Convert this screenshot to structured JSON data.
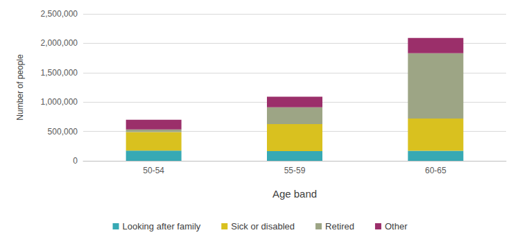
{
  "chart_data": {
    "type": "bar",
    "stacked": true,
    "grid": true,
    "legend": "bottom",
    "x_label": "Age band",
    "y_label": "Number of people",
    "categories": [
      "50-54",
      "55-59",
      "60-65"
    ],
    "series": [
      {
        "name": "Looking after family",
        "color": "#37a9b4",
        "values": [
          175000,
          165000,
          170000
        ]
      },
      {
        "name": "Sick or disabled",
        "color": "#d9c11f",
        "values": [
          315000,
          460000,
          550000
        ]
      },
      {
        "name": "Retired",
        "color": "#9da585",
        "values": [
          45000,
          285000,
          1110000
        ]
      },
      {
        "name": "Other",
        "color": "#9b2f6a",
        "values": [
          165000,
          180000,
          260000
        ]
      }
    ],
    "ylim": [
      0,
      2500000
    ],
    "yticks": [
      0,
      {
        "value": 500000,
        "label": "500,000"
      },
      {
        "value": 1000000,
        "label": "1,000,000"
      },
      {
        "value": 1500000,
        "label": "1,500,000"
      },
      {
        "value": 2000000,
        "label": "2,000,000"
      },
      {
        "value": 2500000,
        "label": "2,500,000"
      }
    ]
  }
}
